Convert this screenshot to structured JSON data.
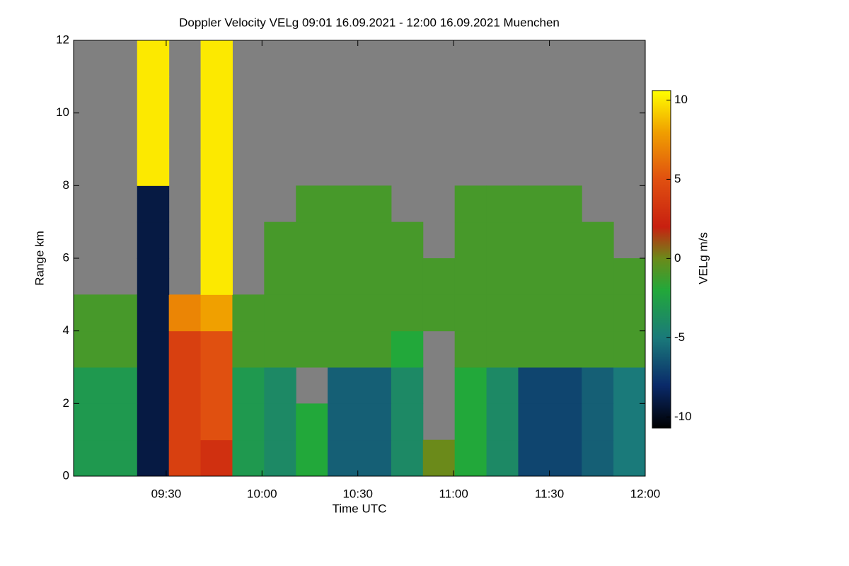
{
  "chart_data": {
    "type": "heatmap",
    "title": "Doppler Velocity VELg   09:01 16.09.2021 - 12:00 16.09.2021 Muenchen",
    "x_label": "Time UTC",
    "y_label": "Range km",
    "colorbar_label": "VELg m/s",
    "xlim": [
      541,
      720
    ],
    "xticks": [
      {
        "value": 570,
        "label": "09:30"
      },
      {
        "value": 600,
        "label": "10:00"
      },
      {
        "value": 630,
        "label": "10:30"
      },
      {
        "value": 660,
        "label": "11:00"
      },
      {
        "value": 690,
        "label": "11:30"
      },
      {
        "value": 720,
        "label": "12:00"
      }
    ],
    "ylim": [
      0,
      12
    ],
    "yticks": [
      0,
      2,
      4,
      6,
      8,
      10,
      12
    ],
    "zlim": [
      -10.7,
      10.6
    ],
    "zticks": [
      -10,
      -5,
      0,
      5,
      10
    ],
    "colorscale": [
      [
        -10.7,
        "#000000"
      ],
      [
        -8,
        "#0a2a6a"
      ],
      [
        -5,
        "#1a7a7a"
      ],
      [
        -2,
        "#22a83a"
      ],
      [
        0,
        "#6b8a1a"
      ],
      [
        2,
        "#c82010"
      ],
      [
        5,
        "#e05010"
      ],
      [
        8,
        "#f0a000"
      ],
      [
        10.6,
        "#ffff00"
      ]
    ],
    "nodata_color": "#808080",
    "z": [
      [
        -3,
        -3,
        -9,
        4,
        3,
        -3,
        -4,
        -2,
        -6,
        -6,
        -4,
        0,
        -2,
        -4,
        -7,
        -7,
        -6,
        -5
      ],
      [
        -3,
        -3,
        -9,
        4,
        5,
        -3,
        -4,
        -2,
        -6,
        -6,
        -4,
        null,
        -2,
        -4,
        -7,
        -7,
        -6,
        -5
      ],
      [
        -3,
        -3,
        -9,
        4,
        5,
        -3,
        -4,
        null,
        -6,
        -6,
        -4,
        null,
        -2,
        -4,
        -7,
        -7,
        -6,
        -5
      ],
      [
        -1,
        -1,
        -9,
        4,
        5,
        -1,
        -1,
        -1,
        -1,
        -1,
        -2,
        null,
        -1,
        -1,
        -1,
        -1,
        -1,
        -1
      ],
      [
        -1,
        -1,
        -9,
        7,
        8,
        -1,
        -1,
        -1,
        -1,
        -1,
        -1,
        -1,
        -1,
        -1,
        -1,
        -1,
        -1,
        -1
      ],
      [
        null,
        null,
        -9,
        null,
        10,
        null,
        -1,
        -1,
        -1,
        -1,
        -1,
        -1,
        -1,
        -1,
        -1,
        -1,
        -1,
        -1
      ],
      [
        null,
        null,
        -9,
        null,
        10,
        null,
        -1,
        -1,
        -1,
        -1,
        -1,
        null,
        -1,
        -1,
        -1,
        -1,
        -1,
        null
      ],
      [
        null,
        null,
        -9,
        null,
        10,
        null,
        null,
        -1,
        -1,
        -1,
        null,
        null,
        -1,
        -1,
        -1,
        -1,
        null,
        null
      ],
      [
        null,
        null,
        10,
        null,
        10,
        null,
        null,
        null,
        null,
        null,
        null,
        null,
        null,
        null,
        null,
        null,
        null,
        null
      ],
      [
        null,
        null,
        10,
        null,
        10,
        null,
        null,
        null,
        null,
        null,
        null,
        null,
        null,
        null,
        null,
        null,
        null,
        null
      ],
      [
        null,
        null,
        10,
        null,
        10,
        null,
        null,
        null,
        null,
        null,
        null,
        null,
        null,
        null,
        null,
        null,
        null,
        null
      ],
      [
        null,
        null,
        10,
        null,
        10,
        null,
        null,
        null,
        null,
        null,
        null,
        null,
        null,
        null,
        null,
        null,
        null,
        null
      ]
    ]
  }
}
